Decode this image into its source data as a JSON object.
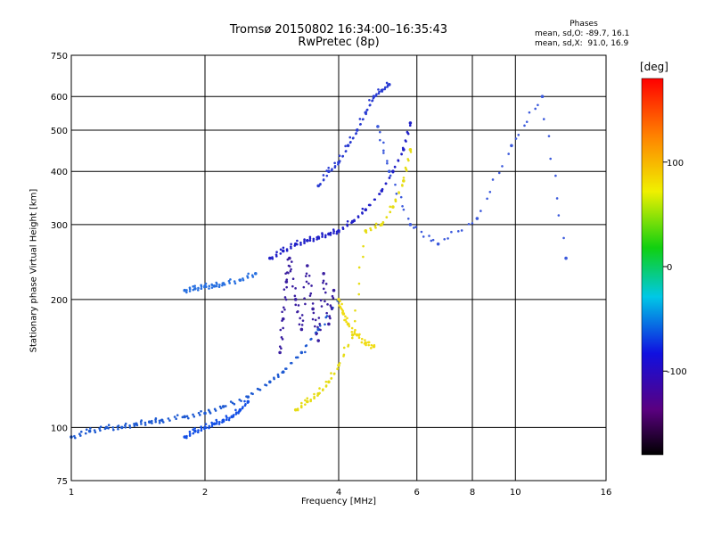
{
  "title": {
    "line1": "Tromsø 20150802 16:34:00–16:35:43",
    "line2": "RwPretec (8p)"
  },
  "stats": {
    "heading": "Phases",
    "o_mode": "mean, sd,O: -89.7, 16.1",
    "x_mode": "mean, sd,X:  91.0, 16.9"
  },
  "chart_data": {
    "type": "scatter",
    "xlabel": "Frequency [MHz]",
    "ylabel": "Stationary phase Virtual Height [km]",
    "xscale": "log",
    "yscale": "log",
    "xlim": [
      1,
      16
    ],
    "ylim": [
      75,
      750
    ],
    "xticks": [
      1,
      2,
      4,
      6,
      8,
      10,
      16
    ],
    "xtick_labels": [
      "1",
      "2",
      "4",
      "6",
      "8",
      "10",
      "16"
    ],
    "yticks": [
      75,
      100,
      200,
      300,
      400,
      500,
      600,
      750
    ],
    "ytick_labels": [
      "75",
      "100",
      "200",
      "300",
      "400",
      "500",
      "600",
      "750"
    ],
    "grid": true,
    "colorbar": {
      "label": "[deg]",
      "range": [
        -180,
        180
      ],
      "ticks": [
        100,
        0,
        -100
      ],
      "tick_labels": [
        "100",
        "0",
        "-100"
      ],
      "colormap": "rainbow (black-purple-blue-cyan-green-yellow-red)"
    },
    "series": [
      {
        "color": "#1e5ad2",
        "phase": -100,
        "x": [
          1.0,
          1.1,
          1.2,
          1.3,
          1.4,
          1.5,
          1.6,
          1.8,
          2.0,
          2.2,
          2.5,
          2.8,
          3.0,
          3.3,
          3.6,
          4.0
        ],
        "y": [
          95,
          98,
          100,
          100,
          102,
          103,
          104,
          106,
          108,
          112,
          118,
          128,
          135,
          150,
          170,
          200
        ]
      },
      {
        "color": "#2020c8",
        "phase": -100,
        "x": [
          2.8,
          3.0,
          3.2,
          3.4,
          3.6,
          3.8,
          4.0,
          4.3,
          4.6,
          5.0,
          5.3,
          5.6,
          5.8
        ],
        "y": [
          250,
          260,
          270,
          275,
          280,
          285,
          290,
          305,
          325,
          360,
          400,
          450,
          520
        ]
      },
      {
        "color": "#3a1ea0",
        "phase": -110,
        "x": [
          2.95,
          3.0,
          3.05,
          3.1,
          3.2,
          3.3,
          3.4,
          3.5,
          3.6,
          3.7,
          3.8,
          3.9
        ],
        "y": [
          150,
          180,
          220,
          250,
          200,
          170,
          240,
          190,
          160,
          230,
          175,
          210
        ]
      },
      {
        "color": "#2a3cd2",
        "phase": -100,
        "x": [
          3.6,
          3.8,
          4.0,
          4.2,
          4.4,
          4.6,
          4.8,
          5.0,
          5.2
        ],
        "y": [
          370,
          400,
          420,
          460,
          500,
          550,
          600,
          620,
          640
        ]
      },
      {
        "color": "#e6dc14",
        "phase": 110,
        "x": [
          3.2,
          3.4,
          3.6,
          3.8,
          4.0,
          4.3,
          4.6,
          5.0,
          5.3,
          5.6,
          5.8
        ],
        "y": [
          110,
          115,
          120,
          128,
          140,
          165,
          290,
          300,
          330,
          380,
          450
        ]
      },
      {
        "color": "#f0dc14",
        "phase": 105,
        "x": [
          4.0,
          4.1,
          4.2,
          4.4,
          4.6,
          4.8
        ],
        "y": [
          200,
          185,
          175,
          165,
          158,
          155
        ]
      },
      {
        "color": "#1450e6",
        "phase": -90,
        "x": [
          1.8,
          1.9,
          2.0,
          2.1,
          2.2,
          2.3,
          2.4,
          2.5
        ],
        "y": [
          95,
          98,
          100,
          102,
          104,
          106,
          110,
          115
        ]
      },
      {
        "color": "#2870e0",
        "phase": -80,
        "x": [
          1.8,
          1.9,
          2.0,
          2.1,
          2.2,
          2.4,
          2.6
        ],
        "y": [
          210,
          212,
          215,
          215,
          218,
          222,
          230
        ]
      },
      {
        "color": "#3c5adc",
        "phase": -95,
        "x": [
          4.9,
          5.2,
          5.8,
          6.7,
          8.2,
          9.8,
          11.5,
          13.0
        ],
        "y": [
          510,
          400,
          300,
          270,
          310,
          460,
          600,
          250
        ]
      }
    ]
  }
}
